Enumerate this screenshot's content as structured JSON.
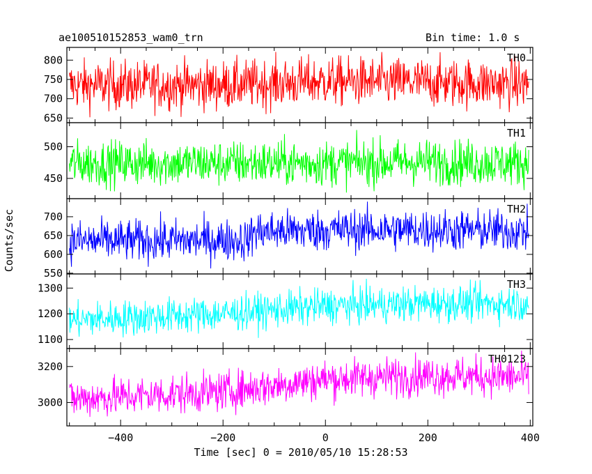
{
  "header": {
    "title": "ae100510152853_wam0_trn",
    "bin_time": "Bin time: 1.0 s"
  },
  "chart_data": {
    "type": "line",
    "xlabel": "Time [sec] 0 = 2010/05/10 15:28:53",
    "ylabel": "Counts/sec",
    "xlim": [
      -505,
      405
    ],
    "x_range": [
      -500,
      397
    ],
    "x_ticks": [
      -400,
      -200,
      0,
      200,
      400
    ],
    "x_step": 1.0,
    "grid": false,
    "series": [
      {
        "name": "TH0",
        "color": "#ff0000",
        "ylim": [
          638,
          833
        ],
        "y_ticks": [
          650,
          700,
          750,
          800
        ],
        "trend": [
          [
            -500,
            735
          ],
          [
            -200,
            735
          ],
          [
            0,
            745
          ],
          [
            200,
            742
          ],
          [
            397,
            738
          ]
        ],
        "noise_sd": 32
      },
      {
        "name": "TH1",
        "color": "#00ff00",
        "ylim": [
          418,
          538
        ],
        "y_ticks": [
          450,
          500
        ],
        "trend": [
          [
            -500,
            474
          ],
          [
            -200,
            474
          ],
          [
            0,
            474
          ],
          [
            200,
            476
          ],
          [
            397,
            474
          ]
        ],
        "noise_sd": 18
      },
      {
        "name": "TH2",
        "color": "#0000ff",
        "ylim": [
          548,
          748
        ],
        "y_ticks": [
          550,
          600,
          650,
          700
        ],
        "trend": [
          [
            -500,
            635
          ],
          [
            -150,
            638
          ],
          [
            -140,
            660
          ],
          [
            0,
            665
          ],
          [
            200,
            665
          ],
          [
            397,
            662
          ]
        ],
        "noise_sd": 28
      },
      {
        "name": "TH3",
        "color": "#00ffff",
        "ylim": [
          1065,
          1355
        ],
        "y_ticks": [
          1100,
          1200,
          1300
        ],
        "trend": [
          [
            -500,
            1175
          ],
          [
            -200,
            1200
          ],
          [
            0,
            1230
          ],
          [
            120,
            1235
          ],
          [
            200,
            1240
          ],
          [
            397,
            1240
          ]
        ],
        "noise_sd": 35
      },
      {
        "name": "TH0123",
        "color": "#ff00ff",
        "ylim": [
          2870,
          3300
        ],
        "y_ticks": [
          3000,
          3200
        ],
        "trend": [
          [
            -500,
            3020
          ],
          [
            -200,
            3060
          ],
          [
            0,
            3130
          ],
          [
            200,
            3150
          ],
          [
            397,
            3140
          ]
        ],
        "noise_sd": 55
      }
    ]
  }
}
